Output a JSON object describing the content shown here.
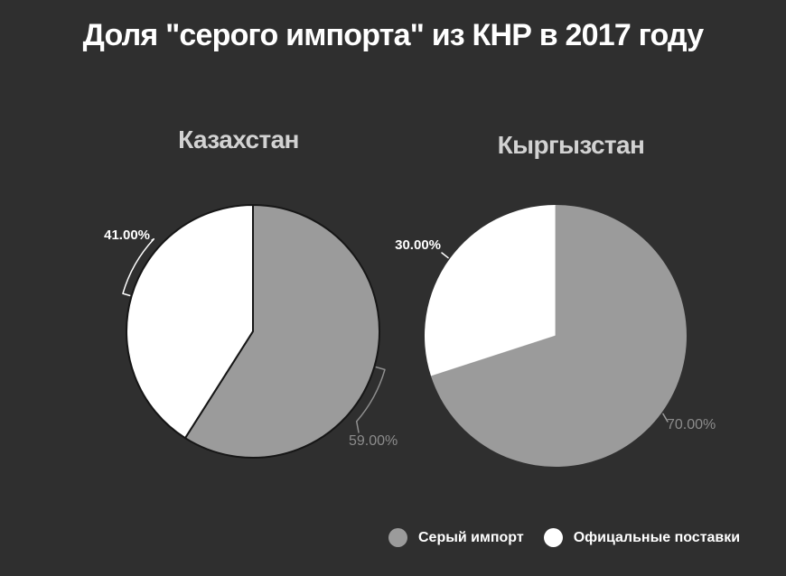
{
  "page": {
    "title": "Доля \"серого импорта\" из КНР в 2017 году",
    "background_color": "#2f2f2f"
  },
  "colors": {
    "gray_series": "#9b9b9b",
    "white_series": "#ffffff",
    "title_text": "#ffffff",
    "subtitle_text": "#d2d2d2",
    "gray_label_text": "#8c8c8c",
    "left_pie_outline": "#161616"
  },
  "legend": {
    "position": "bottom-right",
    "items": [
      {
        "label": "Серый импорт",
        "color": "#9b9b9b"
      },
      {
        "label": "Офицальные поставки",
        "color": "#ffffff"
      }
    ]
  },
  "chart_data": [
    {
      "type": "pie",
      "title": "Казахстан",
      "start_angle_deg": 0,
      "slices": [
        {
          "name": "Серый импорт",
          "value": 59.0,
          "display": "59.00%",
          "color": "#9b9b9b"
        },
        {
          "name": "Офицальные поставки",
          "value": 41.0,
          "display": "41.00%",
          "color": "#ffffff"
        }
      ]
    },
    {
      "type": "pie",
      "title": "Кыргызстан",
      "start_angle_deg": 0,
      "slices": [
        {
          "name": "Серый импорт",
          "value": 70.0,
          "display": "70.00%",
          "color": "#9b9b9b"
        },
        {
          "name": "Офицальные поставки",
          "value": 30.0,
          "display": "30.00%",
          "color": "#ffffff"
        }
      ]
    }
  ]
}
